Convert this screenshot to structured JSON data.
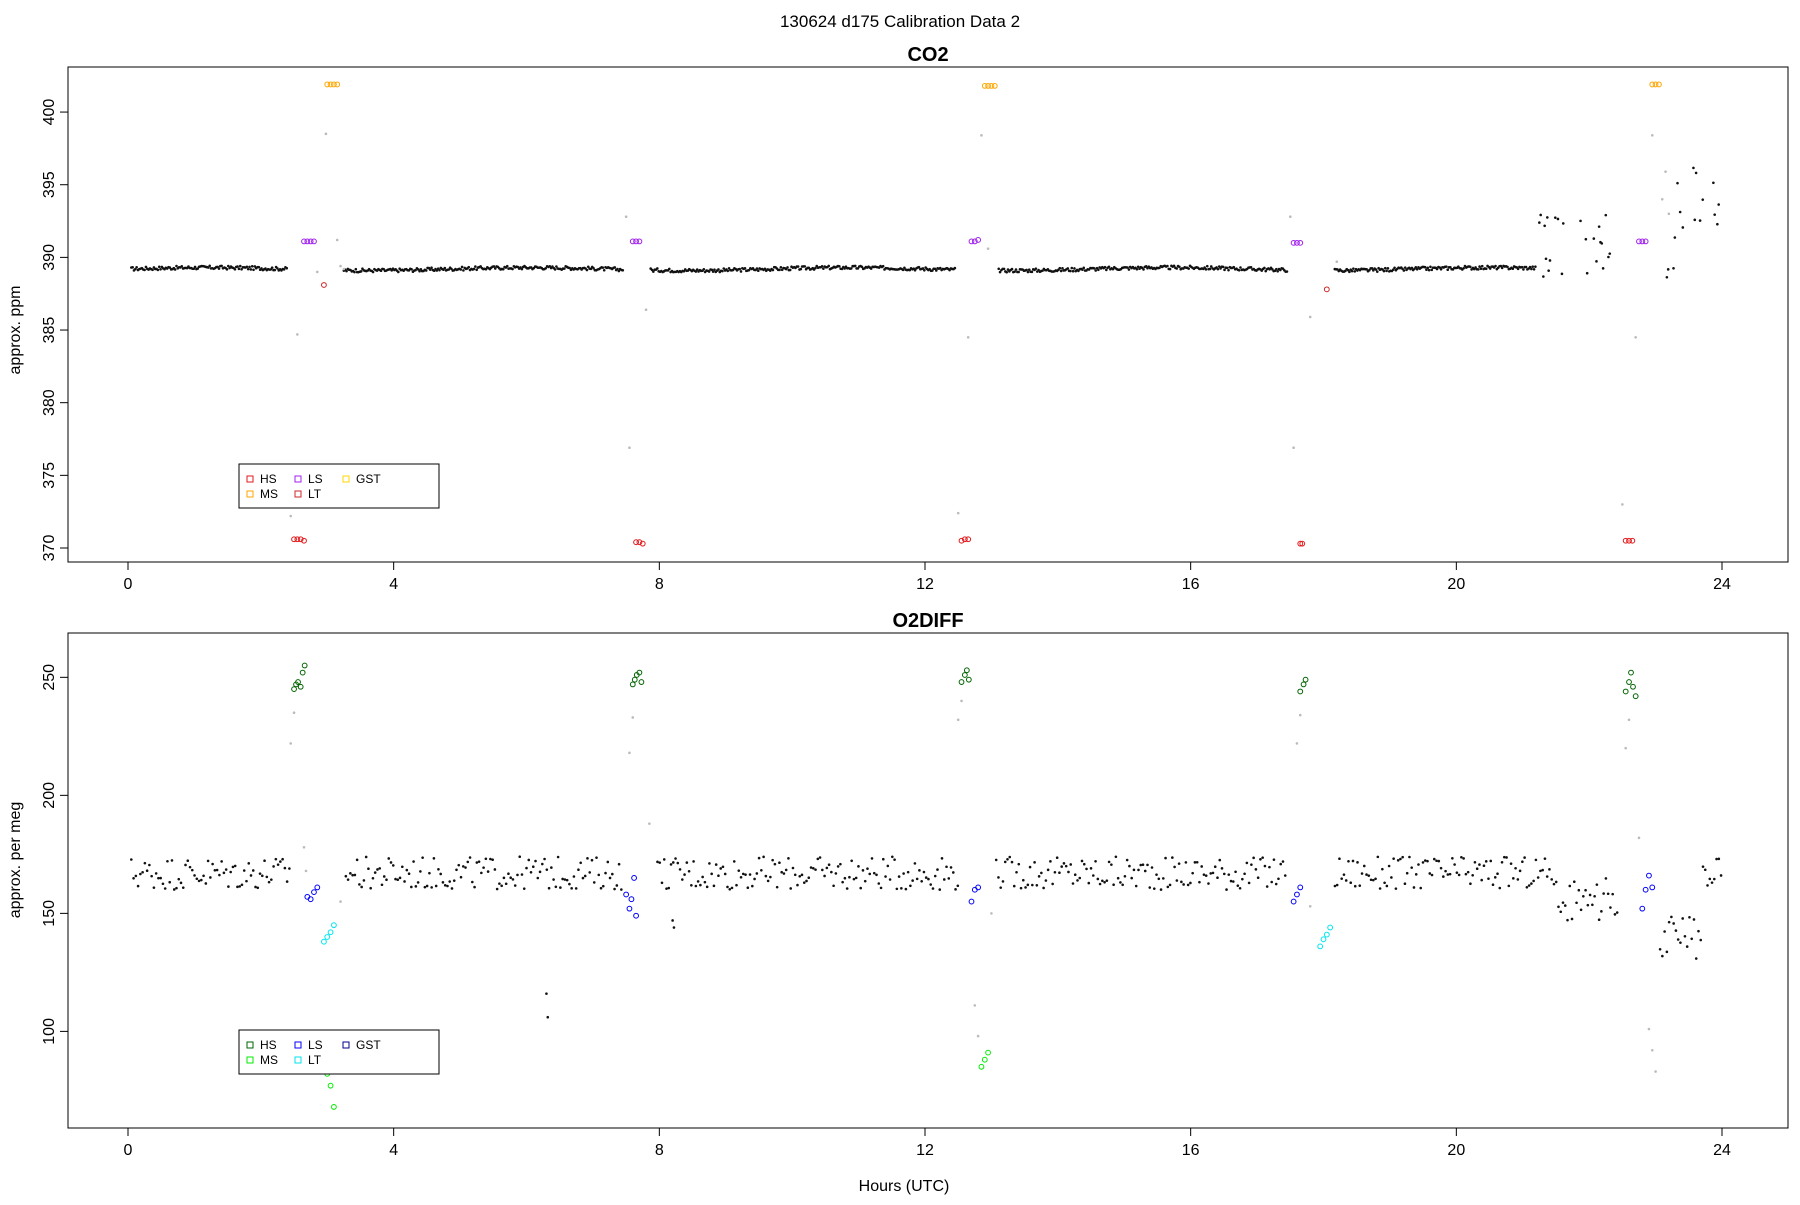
{
  "figure": {
    "title": "130624   d175   Calibration Data 2",
    "xlabel": "Hours (UTC)"
  },
  "chart_data": [
    {
      "type": "scatter",
      "title": "CO2",
      "xlabel": "",
      "ylabel": "approx. ppm",
      "xlim": [
        0,
        24
      ],
      "ylim": [
        370,
        402
      ],
      "xticks": [
        0,
        4,
        8,
        12,
        16,
        20,
        24
      ],
      "yticks": [
        370,
        375,
        380,
        385,
        390,
        395,
        400
      ],
      "grid": false,
      "legend": {
        "placement": "bottom-left",
        "entries": [
          {
            "name": "HS",
            "color": "#e31a1c"
          },
          {
            "name": "MS",
            "color": "#ffa500"
          },
          {
            "name": "LS",
            "color": "#a020f0"
          },
          {
            "name": "LT",
            "color": "#cd2626"
          },
          {
            "name": "GST",
            "color": "#ffd700"
          }
        ]
      },
      "series": [
        {
          "name": "HS",
          "color": "#e31a1c",
          "marker": "open-circle",
          "points": [
            [
              2.5,
              370.6
            ],
            [
              2.55,
              370.6
            ],
            [
              2.6,
              370.6
            ],
            [
              2.65,
              370.5
            ],
            [
              7.65,
              370.4
            ],
            [
              7.7,
              370.4
            ],
            [
              7.75,
              370.3
            ],
            [
              12.55,
              370.5
            ],
            [
              12.6,
              370.6
            ],
            [
              12.65,
              370.6
            ],
            [
              17.65,
              370.3
            ],
            [
              17.68,
              370.3
            ],
            [
              22.55,
              370.5
            ],
            [
              22.6,
              370.5
            ],
            [
              22.65,
              370.5
            ]
          ]
        },
        {
          "name": "MS",
          "color": "#ffa500",
          "marker": "open-circle",
          "points": [
            [
              3.0,
              401.9
            ],
            [
              3.05,
              401.9
            ],
            [
              3.1,
              401.9
            ],
            [
              3.15,
              401.9
            ],
            [
              12.9,
              401.8
            ],
            [
              12.95,
              401.8
            ],
            [
              13.0,
              401.8
            ],
            [
              13.05,
              401.8
            ],
            [
              22.95,
              401.9
            ],
            [
              23.0,
              401.9
            ],
            [
              23.05,
              401.9
            ]
          ]
        },
        {
          "name": "LS",
          "color": "#a020f0",
          "marker": "open-circle",
          "points": [
            [
              2.65,
              391.1
            ],
            [
              2.7,
              391.1
            ],
            [
              2.75,
              391.1
            ],
            [
              2.8,
              391.1
            ],
            [
              7.6,
              391.1
            ],
            [
              7.65,
              391.1
            ],
            [
              7.7,
              391.1
            ],
            [
              12.7,
              391.1
            ],
            [
              12.75,
              391.1
            ],
            [
              12.8,
              391.2
            ],
            [
              17.55,
              391.0
            ],
            [
              17.6,
              391.0
            ],
            [
              17.65,
              391.0
            ],
            [
              22.75,
              391.1
            ],
            [
              22.8,
              391.1
            ],
            [
              22.85,
              391.1
            ]
          ]
        },
        {
          "name": "LT",
          "color": "#cd2626",
          "marker": "open-circle",
          "points": [
            [
              2.95,
              388.1
            ],
            [
              18.05,
              387.8
            ]
          ]
        },
        {
          "name": "GST",
          "color": "#ffd700",
          "marker": "open-circle",
          "points": []
        }
      ]
    },
    {
      "type": "scatter",
      "title": "O2DIFF",
      "xlabel": "Hours (UTC)",
      "ylabel": "approx. per meg",
      "xlim": [
        0,
        24
      ],
      "ylim": [
        65,
        262
      ],
      "xticks": [
        0,
        4,
        8,
        12,
        16,
        20,
        24
      ],
      "yticks": [
        100,
        150,
        200,
        250
      ],
      "grid": false,
      "legend": {
        "placement": "bottom-left",
        "entries": [
          {
            "name": "HS",
            "color": "#006400"
          },
          {
            "name": "MS",
            "color": "#00ee00"
          },
          {
            "name": "LS",
            "color": "#0000ff"
          },
          {
            "name": "LT",
            "color": "#00e5ee"
          },
          {
            "name": "GST",
            "color": "#00008b"
          }
        ]
      },
      "series": [
        {
          "name": "HS",
          "color": "#006400",
          "marker": "open-circle",
          "points": [
            [
              2.5,
              245
            ],
            [
              2.53,
              247
            ],
            [
              2.56,
              248
            ],
            [
              2.6,
              246
            ],
            [
              2.63,
              252
            ],
            [
              2.66,
              255
            ],
            [
              7.6,
              247
            ],
            [
              7.63,
              249
            ],
            [
              7.66,
              251
            ],
            [
              7.7,
              252
            ],
            [
              7.73,
              248
            ],
            [
              12.55,
              248
            ],
            [
              12.6,
              251
            ],
            [
              12.63,
              253
            ],
            [
              12.66,
              249
            ],
            [
              17.65,
              244
            ],
            [
              17.7,
              247
            ],
            [
              17.73,
              249
            ],
            [
              22.55,
              244
            ],
            [
              22.6,
              248
            ],
            [
              22.63,
              252
            ],
            [
              22.66,
              246
            ],
            [
              22.7,
              242
            ]
          ]
        },
        {
          "name": "MS",
          "color": "#00ee00",
          "marker": "open-circle",
          "points": [
            [
              3.0,
              82
            ],
            [
              3.05,
              77
            ],
            [
              3.1,
              68
            ],
            [
              12.85,
              85
            ],
            [
              12.9,
              88
            ],
            [
              12.95,
              91
            ]
          ]
        },
        {
          "name": "LS",
          "color": "#0000ff",
          "marker": "open-circle",
          "points": [
            [
              2.7,
              157
            ],
            [
              2.75,
              156
            ],
            [
              2.8,
              159
            ],
            [
              2.85,
              161
            ],
            [
              7.5,
              158
            ],
            [
              7.55,
              152
            ],
            [
              7.58,
              156
            ],
            [
              7.62,
              165
            ],
            [
              7.65,
              149
            ],
            [
              12.7,
              155
            ],
            [
              12.75,
              160
            ],
            [
              12.8,
              161
            ],
            [
              17.55,
              155
            ],
            [
              17.6,
              158
            ],
            [
              17.65,
              161
            ],
            [
              22.8,
              152
            ],
            [
              22.85,
              160
            ],
            [
              22.9,
              166
            ],
            [
              22.95,
              161
            ]
          ]
        },
        {
          "name": "LT",
          "color": "#00e5ee",
          "marker": "open-circle",
          "points": [
            [
              2.95,
              138
            ],
            [
              3.0,
              140
            ],
            [
              3.05,
              142
            ],
            [
              3.1,
              145
            ],
            [
              17.95,
              136
            ],
            [
              18.0,
              139
            ],
            [
              18.05,
              141
            ],
            [
              18.1,
              144
            ]
          ]
        },
        {
          "name": "GST",
          "color": "#00008b",
          "marker": "open-circle",
          "points": []
        }
      ]
    }
  ]
}
